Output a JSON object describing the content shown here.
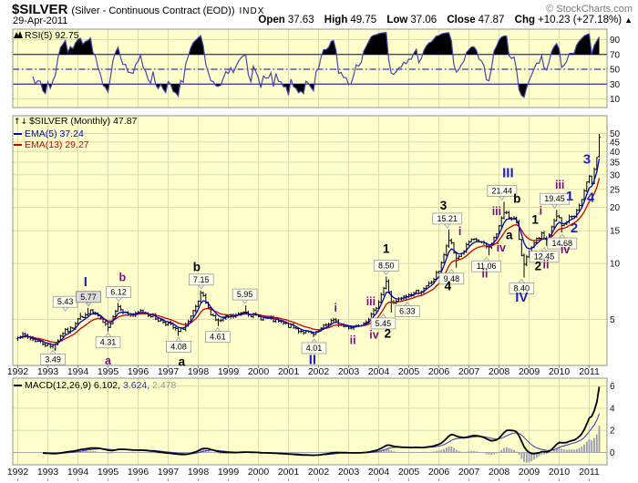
{
  "header": {
    "symbol": "$SILVER",
    "name": "(Silver - Continuous Contract (EOD))",
    "exchange": "INDX",
    "brand": "© StockCharts.com",
    "date": "29-Apr-2011",
    "quote": {
      "open_label": "Open",
      "open": "37.63",
      "high_label": "High",
      "high": "49.75",
      "low_label": "Low",
      "low": "37.06",
      "close_label": "Close",
      "close": "47.87",
      "chg_label": "Chg",
      "chg": "+10.23 (+27.18%)",
      "direction": "▲"
    }
  },
  "legends": {
    "rsi": "RSI(5) 92.75",
    "price_title": "$SILVER (Monthly) 47.87",
    "price_icon": "↑↓",
    "ema5": "EMA(5) 37.24",
    "ema13": "EMA(13) 29.27",
    "macd_main": "MACD(12,26,9) 6.102,",
    "macd_signal": "3.624,",
    "macd_hist": "2.478"
  },
  "colors": {
    "panel_bg": "#FFFFCC",
    "grid": "#DBDBAF",
    "border": "#919191",
    "bars": "#000000",
    "ema5": "#0000CC",
    "ema13": "#CC0000",
    "rsi_line": "#4646B4",
    "rsi_bands": "#0000BB",
    "rsi_fill": "#000000",
    "macd_line": "#000000",
    "macd_signal": "#3333CC",
    "macd_hist": "#9B9BB6",
    "wave_blue": "#1F1FC8",
    "wave_black": "#000000",
    "wave_purple": "#7D0F7D",
    "callout_bg": "#FFFFF0",
    "callout_gray_bg": "#DDDDDD"
  },
  "x_axis": {
    "years": [
      1992,
      1993,
      1994,
      1995,
      1996,
      1997,
      1998,
      1999,
      2000,
      2001,
      2002,
      2003,
      2004,
      2005,
      2006,
      2007,
      2008,
      2009,
      2010,
      2011
    ]
  },
  "chart_data": [
    {
      "pane": "rsi",
      "type": "line",
      "title": "RSI(5)",
      "current_value": 92.75,
      "range": [
        0,
        100
      ],
      "ticks": [
        90,
        70,
        50,
        30,
        10
      ],
      "overbought": 70,
      "midline": 50,
      "oversold": 30,
      "fill_above_overbought": true,
      "fill_below_oversold": true
    },
    {
      "pane": "price",
      "type": "ohlc-bar",
      "title": "$SILVER (Monthly)",
      "interval": "Monthly",
      "log_scale": true,
      "y_ticks": [
        50,
        45,
        40,
        35,
        30,
        25,
        20,
        15,
        10,
        5
      ],
      "last_bar": {
        "open": 37.63,
        "high": 49.75,
        "low": 37.06,
        "close": 47.87
      },
      "ema5_current": 37.24,
      "ema13_current": 29.27,
      "anchors": [
        [
          1992.0,
          4.1
        ],
        [
          1992.3,
          4.05
        ],
        [
          1992.6,
          3.85
        ],
        [
          1992.9,
          3.7
        ],
        [
          1993.17,
          3.52
        ],
        [
          1993.5,
          4.25
        ],
        [
          1993.8,
          4.45
        ],
        [
          1994.05,
          5.3
        ],
        [
          1994.2,
          5.05
        ],
        [
          1994.35,
          5.55
        ],
        [
          1994.6,
          5.35
        ],
        [
          1994.8,
          4.85
        ],
        [
          1995.0,
          4.45
        ],
        [
          1995.15,
          5.2
        ],
        [
          1995.35,
          5.95
        ],
        [
          1995.6,
          5.35
        ],
        [
          1995.9,
          5.25
        ],
        [
          1996.1,
          5.55
        ],
        [
          1996.4,
          5.3
        ],
        [
          1996.7,
          4.95
        ],
        [
          1997.0,
          4.75
        ],
        [
          1997.35,
          4.25
        ],
        [
          1997.7,
          4.9
        ],
        [
          1997.95,
          5.9
        ],
        [
          1998.1,
          6.9
        ],
        [
          1998.35,
          5.6
        ],
        [
          1998.65,
          4.85
        ],
        [
          1999.0,
          5.15
        ],
        [
          1999.3,
          5.25
        ],
        [
          1999.55,
          5.6
        ],
        [
          1999.8,
          5.25
        ],
        [
          2000.1,
          5.1
        ],
        [
          2000.5,
          4.95
        ],
        [
          2000.9,
          4.7
        ],
        [
          2001.3,
          4.4
        ],
        [
          2001.6,
          4.25
        ],
        [
          2001.85,
          4.1
        ],
        [
          2002.1,
          4.45
        ],
        [
          2002.45,
          4.95
        ],
        [
          2002.8,
          4.6
        ],
        [
          2003.15,
          4.55
        ],
        [
          2003.5,
          4.85
        ],
        [
          2003.8,
          5.3
        ],
        [
          2004.0,
          6.3
        ],
        [
          2004.25,
          7.9
        ],
        [
          2004.45,
          5.95
        ],
        [
          2004.7,
          6.4
        ],
        [
          2004.95,
          6.7
        ],
        [
          2005.2,
          7.0
        ],
        [
          2005.5,
          7.2
        ],
        [
          2005.8,
          8.1
        ],
        [
          2006.0,
          9.2
        ],
        [
          2006.2,
          11.5
        ],
        [
          2006.35,
          13.6
        ],
        [
          2006.55,
          10.6
        ],
        [
          2006.8,
          11.5
        ],
        [
          2007.0,
          13.0
        ],
        [
          2007.25,
          13.4
        ],
        [
          2007.45,
          12.8
        ],
        [
          2007.65,
          12.0
        ],
        [
          2007.9,
          14.2
        ],
        [
          2008.1,
          17.5
        ],
        [
          2008.2,
          19.6
        ],
        [
          2008.4,
          17.2
        ],
        [
          2008.55,
          17.4
        ],
        [
          2008.7,
          12.5
        ],
        [
          2008.8,
          9.9
        ],
        [
          2009.0,
          11.3
        ],
        [
          2009.2,
          13.0
        ],
        [
          2009.4,
          14.3
        ],
        [
          2009.6,
          13.3
        ],
        [
          2009.8,
          16.3
        ],
        [
          2009.95,
          18.3
        ],
        [
          2010.1,
          15.6
        ],
        [
          2010.3,
          17.4
        ],
        [
          2010.55,
          18.5
        ],
        [
          2010.75,
          22.0
        ],
        [
          2010.9,
          26.5
        ],
        [
          2011.0,
          28.8
        ],
        [
          2011.08,
          27.2
        ],
        [
          2011.17,
          33.0
        ],
        [
          2011.25,
          37.5
        ],
        [
          2011.33,
          47.87
        ]
      ],
      "callouts": [
        {
          "y": 1993.17,
          "v": 3.49,
          "d": "L"
        },
        {
          "y": 1994.05,
          "v": 5.43,
          "d": "H",
          "bx": 1993.58
        },
        {
          "y": 1994.35,
          "v": 5.77,
          "d": "H",
          "gray": true
        },
        {
          "y": 1995.0,
          "v": 4.31,
          "d": "L"
        },
        {
          "y": 1995.35,
          "v": 6.12,
          "d": "H"
        },
        {
          "y": 1997.35,
          "v": 4.08,
          "d": "L"
        },
        {
          "y": 1998.1,
          "v": 7.15,
          "d": "H"
        },
        {
          "y": 1998.65,
          "v": 4.61,
          "d": "L"
        },
        {
          "y": 1999.55,
          "v": 5.95,
          "d": "H"
        },
        {
          "y": 2001.85,
          "v": 4.01,
          "d": "L"
        },
        {
          "y": 2004.25,
          "v": 8.5,
          "d": "H"
        },
        {
          "y": 2004.45,
          "v": 5.45,
          "d": "L",
          "bx": 2004.15
        },
        {
          "y": 2004.95,
          "v": 6.33,
          "d": "L"
        },
        {
          "y": 2006.35,
          "v": 15.21,
          "d": "H",
          "bx": 2006.28
        },
        {
          "y": 2006.55,
          "v": 9.48,
          "d": "L",
          "bx": 2006.42
        },
        {
          "y": 2007.65,
          "v": 11.06,
          "d": "L",
          "bx": 2007.58
        },
        {
          "y": 2008.2,
          "v": 21.44,
          "d": "H",
          "bx": 2008.1
        },
        {
          "y": 2008.8,
          "v": 8.4,
          "d": "L",
          "bx": 2008.75
        },
        {
          "y": 2009.6,
          "v": 12.45,
          "d": "L",
          "bx": 2009.5
        },
        {
          "y": 2009.95,
          "v": 19.45,
          "d": "H",
          "bx": 2009.85
        },
        {
          "y": 2010.1,
          "v": 14.68,
          "d": "L"
        }
      ],
      "wave_labels": [
        {
          "t": "I",
          "y": 1994.25,
          "v": 8.0,
          "c": "blue"
        },
        {
          "t": "II",
          "y": 2001.8,
          "v": 3.05,
          "c": "blue"
        },
        {
          "t": "III",
          "y": 2008.3,
          "v": 30.9,
          "c": "blue"
        },
        {
          "t": "IV",
          "y": 2008.75,
          "v": 6.6,
          "c": "blue"
        },
        {
          "t": "1",
          "y": 2010.35,
          "v": 23.2,
          "c": "blue"
        },
        {
          "t": "2",
          "y": 2010.5,
          "v": 15.6,
          "c": "blue"
        },
        {
          "t": "3",
          "y": 2010.92,
          "v": 36.6,
          "c": "blue"
        },
        {
          "t": "4",
          "y": 2011.05,
          "v": 22.8,
          "c": "blue"
        },
        {
          "t": "a",
          "y": 1997.45,
          "v": 2.97,
          "c": "black"
        },
        {
          "t": "b",
          "y": 1997.95,
          "v": 9.6,
          "c": "black"
        },
        {
          "t": "1",
          "y": 2004.25,
          "v": 12.0,
          "c": "black"
        },
        {
          "t": "2",
          "y": 2004.3,
          "v": 4.2,
          "c": "black"
        },
        {
          "t": "3",
          "y": 2006.15,
          "v": 20.6,
          "c": "black"
        },
        {
          "t": "4",
          "y": 2006.3,
          "v": 7.55,
          "c": "black"
        },
        {
          "t": "a",
          "y": 2008.34,
          "v": 14.2,
          "c": "black"
        },
        {
          "t": "b",
          "y": 2008.6,
          "v": 22.4,
          "c": "black"
        },
        {
          "t": "1",
          "y": 2009.2,
          "v": 17.3,
          "c": "black"
        },
        {
          "t": "2",
          "y": 2009.3,
          "v": 9.7,
          "c": "black"
        },
        {
          "t": "a",
          "y": 1995.0,
          "v": 3.0,
          "c": "purple"
        },
        {
          "t": "b",
          "y": 1995.48,
          "v": 8.45,
          "c": "purple"
        },
        {
          "t": "i",
          "y": 2002.57,
          "v": 5.78,
          "c": "purple"
        },
        {
          "t": "ii",
          "y": 2003.14,
          "v": 3.87,
          "c": "purple"
        },
        {
          "t": "iii",
          "y": 2003.74,
          "v": 6.25,
          "c": "purple"
        },
        {
          "t": "iv",
          "y": 2003.85,
          "v": 4.15,
          "c": "purple"
        },
        {
          "t": "i",
          "y": 2006.7,
          "v": 14.9,
          "c": "purple"
        },
        {
          "t": "ii",
          "y": 2007.53,
          "v": 8.84,
          "c": "purple"
        },
        {
          "t": "iii",
          "y": 2007.92,
          "v": 19.1,
          "c": "purple"
        },
        {
          "t": "iv",
          "y": 2008.07,
          "v": 12.2,
          "c": "purple"
        },
        {
          "t": "i",
          "y": 2009.39,
          "v": 19.2,
          "c": "purple"
        },
        {
          "t": "ii",
          "y": 2009.56,
          "v": 9.9,
          "c": "purple"
        },
        {
          "t": "iii",
          "y": 2010.02,
          "v": 26.6,
          "c": "purple"
        },
        {
          "t": "iv",
          "y": 2010.2,
          "v": 11.9,
          "c": "purple"
        }
      ]
    },
    {
      "pane": "macd",
      "type": "line+histogram",
      "title": "MACD(12,26,9)",
      "macd_current": 6.102,
      "signal_current": 3.624,
      "hist_current": 2.478,
      "ticks": [
        6,
        4,
        2,
        0
      ]
    }
  ]
}
